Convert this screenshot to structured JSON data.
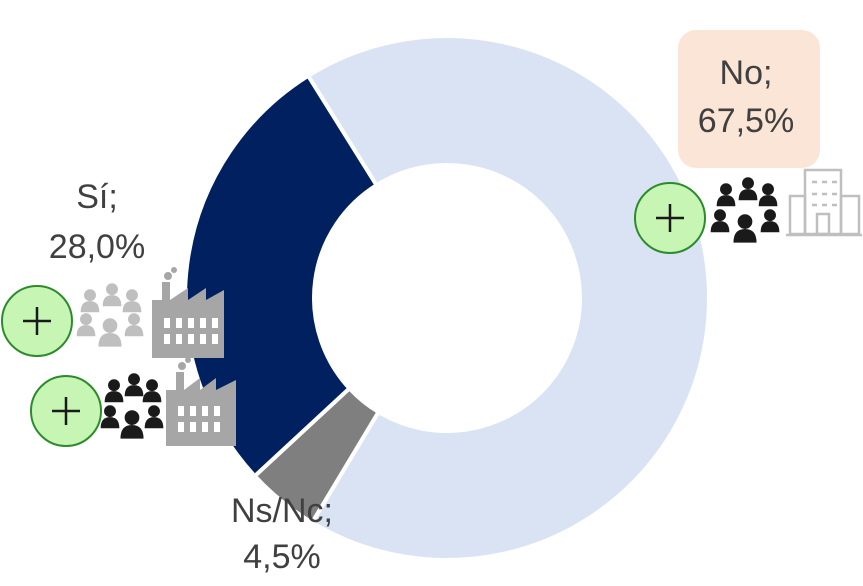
{
  "chart_data": {
    "type": "pie",
    "variant": "donut",
    "slices": [
      {
        "label_name": "No;",
        "label_value": "67,5%",
        "value": 67.5,
        "color": "#dae3f3"
      },
      {
        "label_name": "Ns/Nc;",
        "label_value": "4,5%",
        "value": 4.5,
        "color": "#7f7f7f"
      },
      {
        "label_name": "Sí;",
        "label_value": "28,0%",
        "value": 28.0,
        "color": "#002060"
      }
    ],
    "title": "",
    "legend": "none",
    "colors": {
      "no_label_box": "#fbe5d6",
      "plus_badge_fill": "#c6f5b4",
      "plus_badge_stroke": "#2d8b2d",
      "people_icon": "#1a1a1a",
      "people_icon_light": "#bfbfbf",
      "factory_icon": "#a6a6a6",
      "building_icon": "#bfbfbf",
      "text": "#404040"
    },
    "icons": [
      "plus-badge-icon",
      "people-group-icon",
      "office-building-icon",
      "plus-badge-icon",
      "people-group-light-icon",
      "factory-icon",
      "plus-badge-icon",
      "people-group-icon",
      "factory-icon"
    ]
  }
}
